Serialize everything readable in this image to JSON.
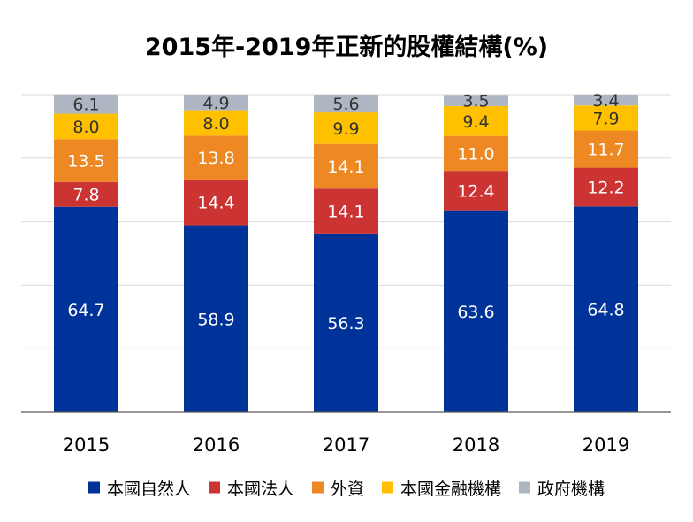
{
  "chart_data": {
    "type": "bar",
    "stacked": true,
    "title": "2015年-2019年正新的股權結構(%)",
    "xlabel": "",
    "ylabel": "",
    "ylim": [
      0,
      100
    ],
    "grid": true,
    "legend_position": "bottom",
    "categories": [
      "2015",
      "2016",
      "2017",
      "2018",
      "2019"
    ],
    "series": [
      {
        "name": "本國自然人",
        "color": "#003399",
        "label_color": "#ffffff",
        "values": [
          64.7,
          58.9,
          56.3,
          63.6,
          64.8
        ]
      },
      {
        "name": "本國法人",
        "color": "#cc3333",
        "label_color": "#ffffff",
        "values": [
          7.8,
          14.4,
          14.1,
          12.4,
          12.2
        ]
      },
      {
        "name": "外資",
        "color": "#ee8822",
        "label_color": "#ffffff",
        "values": [
          13.5,
          13.8,
          14.1,
          11.0,
          11.7
        ]
      },
      {
        "name": "本國金融機構",
        "color": "#ffc000",
        "label_color": "#333333",
        "values": [
          8.0,
          8.0,
          9.9,
          9.4,
          7.9
        ]
      },
      {
        "name": "政府機構",
        "color": "#aeb6c4",
        "label_color": "#333333",
        "values": [
          6.1,
          4.9,
          5.6,
          3.5,
          3.4
        ]
      }
    ]
  }
}
